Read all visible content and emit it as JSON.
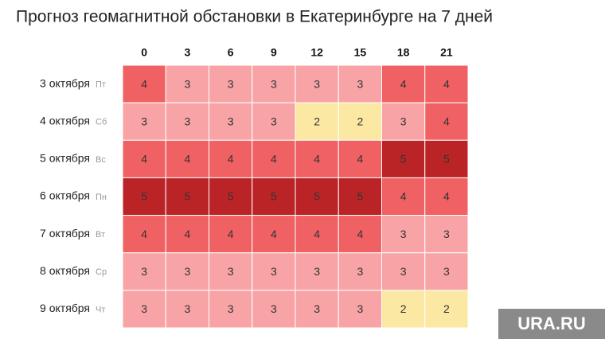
{
  "chart_data": {
    "type": "heatmap",
    "title": "Прогноз геомагнитной обстановки в Екатеринбурге на 7 дней",
    "columns": [
      0,
      3,
      6,
      9,
      12,
      15,
      18,
      21
    ],
    "rows": [
      {
        "date": "3 октября",
        "day": "Пт"
      },
      {
        "date": "4 октября",
        "day": "Сб"
      },
      {
        "date": "5 октября",
        "day": "Вс"
      },
      {
        "date": "6 октября",
        "day": "Пн"
      },
      {
        "date": "7 октября",
        "day": "Вт"
      },
      {
        "date": "8 октября",
        "day": "Ср"
      },
      {
        "date": "9 октября",
        "day": "Чт"
      }
    ],
    "values": [
      [
        4,
        3,
        3,
        3,
        3,
        3,
        4,
        4
      ],
      [
        3,
        3,
        3,
        3,
        2,
        2,
        3,
        4
      ],
      [
        4,
        4,
        4,
        4,
        4,
        4,
        5,
        5
      ],
      [
        5,
        5,
        5,
        5,
        5,
        5,
        4,
        4
      ],
      [
        4,
        4,
        4,
        4,
        4,
        4,
        3,
        3
      ],
      [
        3,
        3,
        3,
        3,
        3,
        3,
        3,
        3
      ],
      [
        3,
        3,
        3,
        3,
        3,
        3,
        2,
        2
      ]
    ],
    "color_scale": [
      {
        "value": 2,
        "color": "#fbe8a2"
      },
      {
        "value": 3,
        "color": "#f8a4a6"
      },
      {
        "value": 4,
        "color": "#ef6163"
      },
      {
        "value": 5,
        "color": "#bb2427"
      }
    ]
  },
  "watermark": "URA.RU"
}
